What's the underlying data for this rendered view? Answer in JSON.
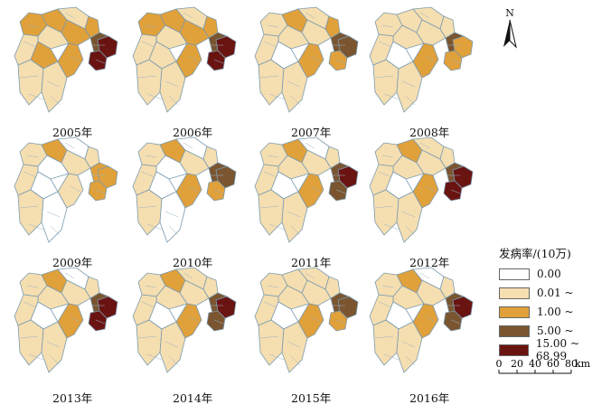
{
  "panels": [
    {
      "year": "2005年",
      "classes": [
        2,
        2,
        1,
        1,
        2,
        2,
        1,
        2,
        1,
        1,
        2,
        3,
        4,
        4
      ]
    },
    {
      "year": "2006年",
      "classes": [
        2,
        2,
        1,
        1,
        2,
        2,
        1,
        1,
        1,
        1,
        2,
        3,
        4,
        4
      ]
    },
    {
      "year": "2007年",
      "classes": [
        1,
        2,
        1,
        1,
        2,
        1,
        1,
        0,
        1,
        1,
        2,
        3,
        3,
        2
      ]
    },
    {
      "year": "2008年",
      "classes": [
        1,
        1,
        1,
        1,
        1,
        1,
        1,
        0,
        1,
        1,
        2,
        3,
        2,
        2
      ]
    },
    {
      "year": "2009年",
      "classes": [
        1,
        2,
        0,
        0,
        1,
        1,
        1,
        0,
        1,
        0,
        1,
        2,
        2,
        2
      ]
    },
    {
      "year": "2010年",
      "classes": [
        1,
        2,
        0,
        0,
        1,
        1,
        1,
        0,
        1,
        0,
        2,
        3,
        3,
        2
      ]
    },
    {
      "year": "2011年",
      "classes": [
        1,
        2,
        1,
        0,
        1,
        1,
        1,
        0,
        1,
        1,
        2,
        3,
        4,
        3
      ]
    },
    {
      "year": "2012年",
      "classes": [
        1,
        2,
        1,
        1,
        1,
        1,
        1,
        0,
        1,
        1,
        2,
        3,
        4,
        4
      ]
    },
    {
      "year": "2013年",
      "classes": [
        1,
        2,
        1,
        0,
        1,
        1,
        1,
        0,
        1,
        1,
        2,
        3,
        4,
        4
      ]
    },
    {
      "year": "2014年",
      "classes": [
        1,
        2,
        1,
        1,
        1,
        1,
        1,
        0,
        1,
        1,
        2,
        3,
        4,
        3
      ]
    },
    {
      "year": "2015年",
      "classes": [
        1,
        1,
        1,
        1,
        1,
        1,
        1,
        0,
        1,
        1,
        2,
        3,
        3,
        2
      ]
    },
    {
      "year": "2016年",
      "classes": [
        1,
        2,
        1,
        0,
        1,
        1,
        1,
        0,
        1,
        1,
        2,
        3,
        4,
        3
      ]
    }
  ],
  "legend": {
    "title": "发病率/(10万)",
    "items": [
      {
        "label": "0.00",
        "color": "#ffffff"
      },
      {
        "label": "0.01 ~",
        "color": "#f5deb0"
      },
      {
        "label": "1.00 ~",
        "color": "#e0a03a"
      },
      {
        "label": "5.00 ~",
        "color": "#7a5530"
      },
      {
        "label": "15.00 ~ 68.99",
        "color": "#6a1412"
      }
    ]
  },
  "north_arrow": {
    "label": "N"
  },
  "scale_bar": {
    "ticks": [
      "0",
      "20",
      "40",
      "60",
      "80"
    ],
    "unit": "km"
  }
}
